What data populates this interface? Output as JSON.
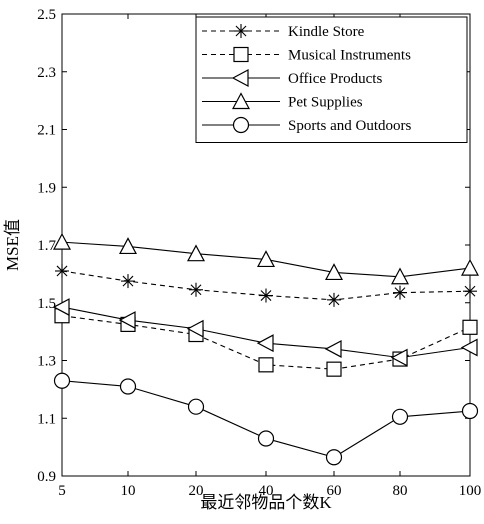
{
  "chart_data": {
    "type": "line",
    "xlabel": "最近邻物品个数K",
    "ylabel": "MSE值",
    "x": [
      5,
      10,
      20,
      40,
      60,
      80,
      100
    ],
    "ylim": [
      0.9,
      2.5
    ],
    "yticks": [
      0.9,
      1.1,
      1.3,
      1.5,
      1.7,
      1.9,
      2.1,
      2.3,
      2.5
    ],
    "yticklabels": [
      "0.9",
      "1.1",
      "1.3",
      "1.5",
      "1.7",
      "1.9",
      "2.1",
      "2.3",
      "2.5"
    ],
    "xticklabels": [
      "5",
      "10",
      "20",
      "40",
      "60",
      "80",
      "100"
    ],
    "grid": false,
    "legend_position": "top-right",
    "series": [
      {
        "name": "Kindle Store",
        "marker": "asterisk",
        "line": "dashed",
        "values": [
          1.61,
          1.575,
          1.545,
          1.525,
          1.51,
          1.535,
          1.54
        ]
      },
      {
        "name": "Musical Instruments",
        "marker": "square",
        "line": "dashed",
        "values": [
          1.455,
          1.425,
          1.39,
          1.285,
          1.27,
          1.305,
          1.415
        ]
      },
      {
        "name": "Office Products",
        "marker": "triangle-left",
        "line": "solid",
        "values": [
          1.485,
          1.44,
          1.41,
          1.36,
          1.34,
          1.31,
          1.345
        ]
      },
      {
        "name": "Pet Supplies",
        "marker": "triangle-up",
        "line": "solid",
        "values": [
          1.71,
          1.695,
          1.67,
          1.65,
          1.605,
          1.59,
          1.62
        ]
      },
      {
        "name": "Sports and Outdoors",
        "marker": "circle",
        "line": "solid",
        "values": [
          1.23,
          1.21,
          1.14,
          1.03,
          0.965,
          1.105,
          1.125
        ]
      }
    ]
  }
}
